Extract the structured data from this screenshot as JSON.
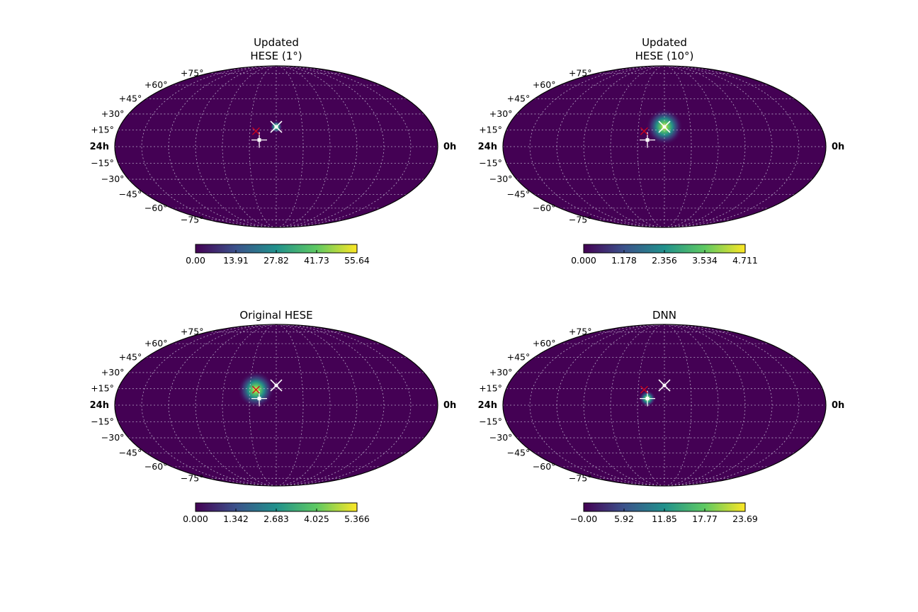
{
  "chart_data": [
    {
      "type": "heatmap",
      "projection": "mollweide",
      "title_lines": [
        "Updated",
        "HESE (1°)"
      ],
      "lat_labels": [
        "+75°",
        "+60°",
        "+45°",
        "+30°",
        "+15°",
        "−15°",
        "−30°",
        "−45°",
        "−60°",
        "−75°"
      ],
      "lat_values": [
        75,
        60,
        45,
        30,
        15,
        -15,
        -30,
        -45,
        -60,
        -75
      ],
      "ra_left": "24h",
      "ra_right": "0h",
      "colorbar": {
        "min": 0.0,
        "max": 55.64,
        "ticks": [
          "0.00",
          "13.91",
          "27.82",
          "41.73",
          "55.64"
        ]
      },
      "hotspot": {
        "lon": 0,
        "lat": 18,
        "width_deg": 3
      },
      "markers": [
        {
          "symbol": "star",
          "color": "#ffffff",
          "lon": 0,
          "lat": 18
        },
        {
          "symbol": "cross",
          "color": "#ffffff",
          "lon": -19,
          "lat": 6
        },
        {
          "symbol": "x",
          "color": "#d0021b",
          "lon": -23,
          "lat": 14
        }
      ]
    },
    {
      "type": "heatmap",
      "projection": "mollweide",
      "title_lines": [
        "Updated",
        "HESE (10°)"
      ],
      "lat_labels": [
        "+75°",
        "+60°",
        "+45°",
        "+30°",
        "+15°",
        "−15°",
        "−30°",
        "−45°",
        "−60°",
        "−75°"
      ],
      "lat_values": [
        75,
        60,
        45,
        30,
        15,
        -15,
        -30,
        -45,
        -60,
        -75
      ],
      "ra_left": "24h",
      "ra_right": "0h",
      "colorbar": {
        "min": 0.0,
        "max": 4.711,
        "ticks": [
          "0.000",
          "1.178",
          "2.356",
          "3.534",
          "4.711"
        ]
      },
      "hotspot": {
        "lon": 0,
        "lat": 18,
        "width_deg": 9
      },
      "markers": [
        {
          "symbol": "star",
          "color": "#ffffff",
          "lon": 0,
          "lat": 18
        },
        {
          "symbol": "cross",
          "color": "#ffffff",
          "lon": -19,
          "lat": 6
        },
        {
          "symbol": "x",
          "color": "#d0021b",
          "lon": -23,
          "lat": 14
        }
      ]
    },
    {
      "type": "heatmap",
      "projection": "mollweide",
      "title_lines": [
        "Original HESE"
      ],
      "lat_labels": [
        "+75°",
        "+60°",
        "+45°",
        "+30°",
        "+15°",
        "−15°",
        "−30°",
        "−45°",
        "−60°",
        "−75°"
      ],
      "lat_values": [
        75,
        60,
        45,
        30,
        15,
        -15,
        -30,
        -45,
        -60,
        -75
      ],
      "ra_left": "24h",
      "ra_right": "0h",
      "colorbar": {
        "min": 0.0,
        "max": 5.366,
        "ticks": [
          "0.000",
          "1.342",
          "2.683",
          "4.025",
          "5.366"
        ]
      },
      "hotspot": {
        "lon": -23,
        "lat": 14,
        "width_deg": 9
      },
      "markers": [
        {
          "symbol": "star",
          "color": "#ffffff",
          "lon": 0,
          "lat": 18
        },
        {
          "symbol": "cross",
          "color": "#ffffff",
          "lon": -19,
          "lat": 6
        },
        {
          "symbol": "x",
          "color": "#d0021b",
          "lon": -23,
          "lat": 14
        }
      ]
    },
    {
      "type": "heatmap",
      "projection": "mollweide",
      "title_lines": [
        "DNN"
      ],
      "lat_labels": [
        "+75°",
        "+60°",
        "+45°",
        "+30°",
        "+15°",
        "−15°",
        "−30°",
        "−45°",
        "−60°",
        "−75°"
      ],
      "lat_values": [
        75,
        60,
        45,
        30,
        15,
        -15,
        -30,
        -45,
        -60,
        -75
      ],
      "ra_left": "24h",
      "ra_right": "0h",
      "colorbar": {
        "min": 0.0,
        "max": 23.69,
        "ticks": [
          "−0.00",
          "5.92",
          "11.85",
          "17.77",
          "23.69"
        ]
      },
      "hotspot": {
        "lon": -19,
        "lat": 6,
        "width_deg": 4
      },
      "markers": [
        {
          "symbol": "star",
          "color": "#ffffff",
          "lon": 0,
          "lat": 18
        },
        {
          "symbol": "cross",
          "color": "#ffffff",
          "lon": -19,
          "lat": 6
        },
        {
          "symbol": "x",
          "color": "#d0021b",
          "lon": -23,
          "lat": 14
        }
      ]
    }
  ],
  "colors": {
    "map_background": "#440154",
    "viridis": [
      "#440154",
      "#3b528b",
      "#21918c",
      "#5ec962",
      "#fde725"
    ],
    "outline": "#000000"
  }
}
